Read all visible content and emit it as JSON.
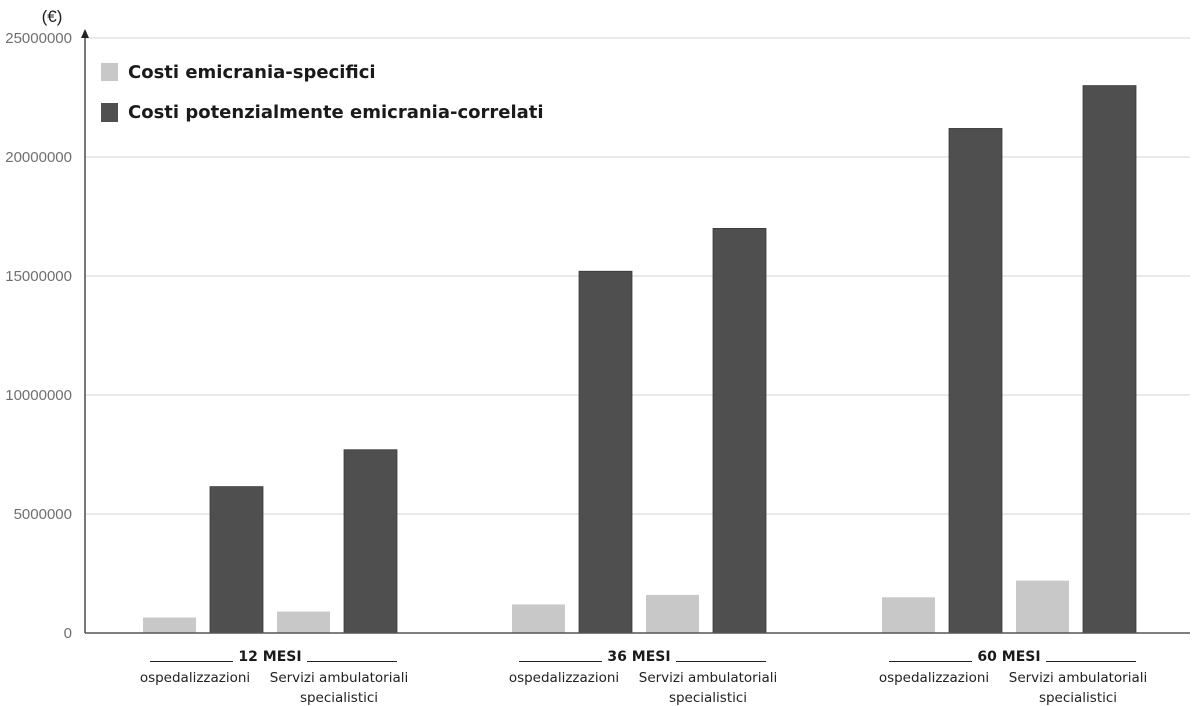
{
  "chart_data": {
    "type": "bar",
    "title": "",
    "ylabel": "(€)",
    "xlabel": "",
    "ylim": [
      0,
      25000000
    ],
    "yticks": [
      "0",
      "5000000",
      "10000000",
      "15000000",
      "20000000",
      "25000000"
    ],
    "grid": true,
    "legend_position": "top-left",
    "colors": {
      "specifici": "#c8c8c8",
      "correlati": "#4f4f4f",
      "axis": "#555555",
      "grid": "#dddddd"
    },
    "groups": [
      {
        "label": "12 MESI",
        "categories": [
          "ospedalizzazioni",
          "Servizi ambulatoriali specialistici"
        ]
      },
      {
        "label": "36 MESI",
        "categories": [
          "ospedalizzazioni",
          "Servizi ambulatoriali specialistici"
        ]
      },
      {
        "label": "60 MESI",
        "categories": [
          "ospedalizzazioni",
          "Servizi ambulatoriali specialistici"
        ]
      }
    ],
    "category_lines": {
      "ospedalizzazioni": [
        "ospedalizzazioni"
      ],
      "Servizi ambulatoriali specialistici": [
        "Servizi ambulatoriali",
        "specialistici"
      ]
    },
    "series": [
      {
        "name": "Costi emicrania-specifici",
        "key": "specifici",
        "values": [
          [
            650000,
            900000
          ],
          [
            1200000,
            1600000
          ],
          [
            1500000,
            2200000
          ]
        ]
      },
      {
        "name": "Costi potenzialmente emicrania-correlati",
        "key": "correlati",
        "values": [
          [
            6150000,
            7700000
          ],
          [
            15200000,
            17000000
          ],
          [
            21200000,
            23000000
          ]
        ]
      }
    ]
  }
}
